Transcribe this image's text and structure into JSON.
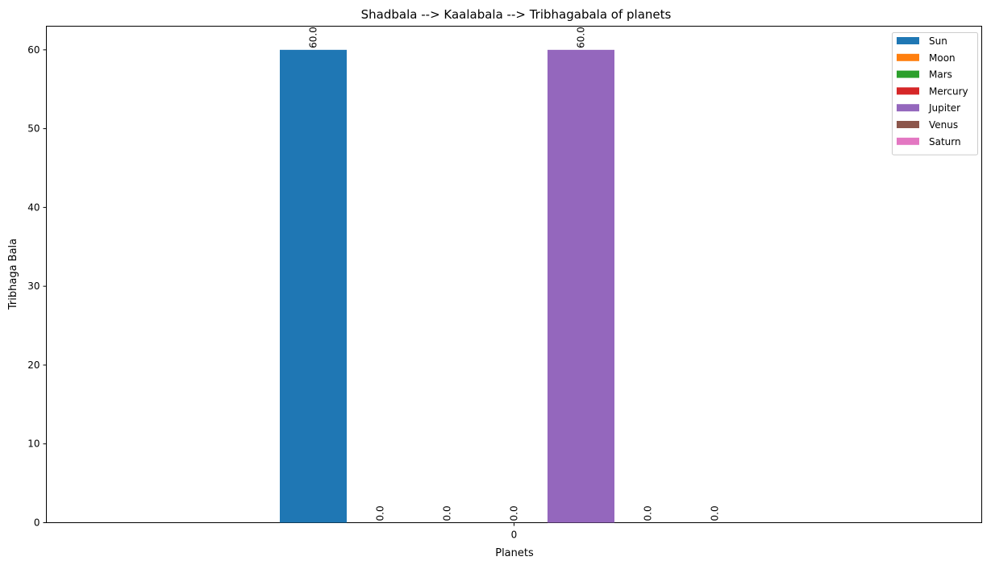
{
  "chart_data": {
    "type": "bar",
    "title": "Shadbala --> Kaalabala --> Tribhagabala of planets",
    "xlabel": "Planets",
    "ylabel": "Tribhaga Bala",
    "categories": [
      "0"
    ],
    "ylim": [
      0,
      63
    ],
    "yticks": [
      0,
      10,
      20,
      30,
      40,
      50,
      60
    ],
    "grid": false,
    "legend_position": "top-right",
    "series": [
      {
        "name": "Sun",
        "values": [
          60.0
        ],
        "label": "60.0",
        "color": "#1f77b4"
      },
      {
        "name": "Moon",
        "values": [
          0.0
        ],
        "label": "0.0",
        "color": "#ff7f0e"
      },
      {
        "name": "Mars",
        "values": [
          0.0
        ],
        "label": "0.0",
        "color": "#2ca02c"
      },
      {
        "name": "Mercury",
        "values": [
          0.0
        ],
        "label": "0.0",
        "color": "#d62728"
      },
      {
        "name": "Jupiter",
        "values": [
          60.0
        ],
        "label": "60.0",
        "color": "#9467bd"
      },
      {
        "name": "Venus",
        "values": [
          0.0
        ],
        "label": "0.0",
        "color": "#8c564b"
      },
      {
        "name": "Saturn",
        "values": [
          0.0
        ],
        "label": "0.0",
        "color": "#e377c2"
      }
    ]
  }
}
